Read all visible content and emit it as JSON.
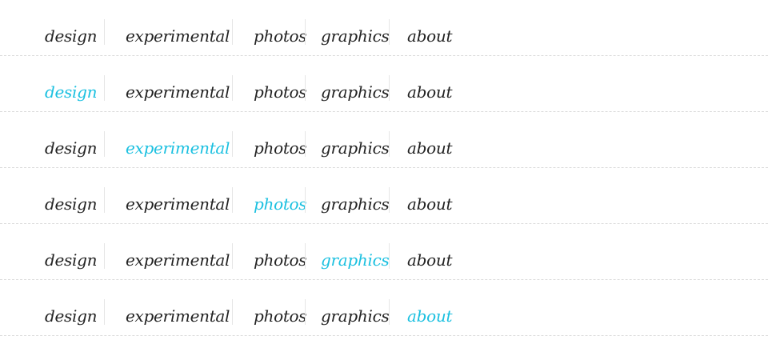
{
  "nav_items": [
    "design",
    "experimental",
    "photos",
    "graphics",
    "about"
  ],
  "rows": [
    {
      "active": null
    },
    {
      "active": 0
    },
    {
      "active": 1
    },
    {
      "active": 2
    },
    {
      "active": 3
    },
    {
      "active": 4
    }
  ],
  "colors": {
    "text": "#222222",
    "active": "#1bc0e0",
    "separator": "#e6e6e6",
    "divider": "#dcdcdc",
    "background": "#ffffff"
  }
}
